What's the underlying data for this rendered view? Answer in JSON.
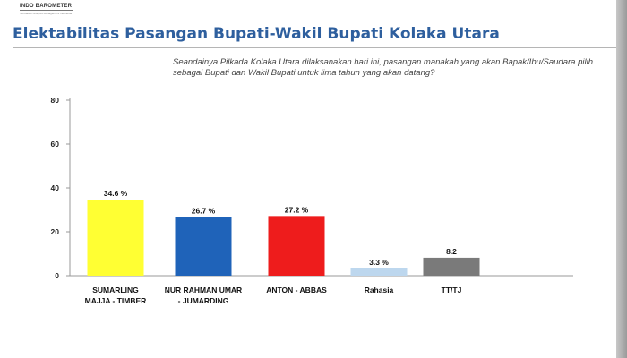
{
  "header": {
    "logo_name": "INDO BAROMETER",
    "logo_tagline": "Simulation Analysis Management Indonesia",
    "title": "Elektabilitas Pasangan Bupati-Wakil Bupati Kolaka Utara"
  },
  "question": "Seandainya Pilkada Kolaka Utara dilaksanakan hari ini, pasangan manakah yang akan Bapak/Ibu/Saudara pilih sebagai Bupati dan Wakil Bupati untuk lima tahun yang akan datang?",
  "chart_data": {
    "type": "bar",
    "title": "",
    "xlabel": "",
    "ylabel": "",
    "ylim": [
      0,
      80
    ],
    "yticks": [
      0,
      20,
      40,
      60,
      80
    ],
    "ytick_labels": [
      "0",
      "20",
      "40",
      "60",
      "80"
    ],
    "grid": false,
    "legend": "none",
    "categories": [
      [
        "SUMARLING",
        "MAJJA - TIMBER"
      ],
      [
        "NUR RAHMAN UMAR",
        "- JUMARDING"
      ],
      [
        "ANTON - ABBAS"
      ],
      [
        "Rahasia"
      ],
      [
        "TT/TJ"
      ]
    ],
    "values": [
      34.6,
      26.7,
      27.2,
      3.3,
      8.2
    ],
    "data_labels": [
      "34.6 %",
      "26.7 %",
      "27.2 %",
      "3.3 %",
      "8.2"
    ],
    "colors": [
      "#ffff33",
      "#1f63b9",
      "#ee1c1c",
      "#bdd7ee",
      "#7a7a7a"
    ],
    "axis_color": "#999999"
  }
}
